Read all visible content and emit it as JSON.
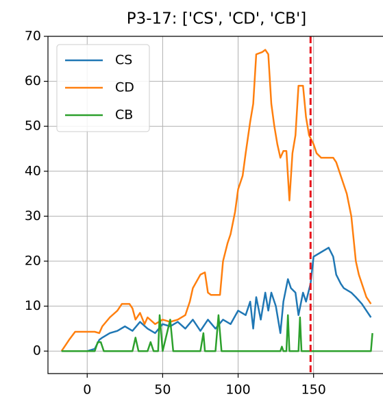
{
  "chart_data": {
    "type": "line",
    "title": "P3-17: ['CS', 'CD', 'CB']",
    "xlim": [
      -26,
      196
    ],
    "ylim": [
      -5,
      70
    ],
    "xticks": [
      0,
      50,
      100,
      150
    ],
    "yticks": [
      0,
      10,
      20,
      30,
      40,
      50,
      60,
      70
    ],
    "grid": true,
    "legend": "upper left",
    "vline": {
      "x": 148,
      "color": "#e8141c"
    },
    "series": [
      {
        "name": "CS",
        "color": "#1f77b4",
        "x": [
          -17,
          0,
          5,
          8,
          10,
          15,
          20,
          25,
          30,
          35,
          40,
          45,
          50,
          55,
          60,
          65,
          70,
          75,
          80,
          85,
          90,
          95,
          100,
          105,
          108,
          110,
          112,
          115,
          118,
          120,
          122,
          125,
          128,
          130,
          133,
          135,
          138,
          140,
          143,
          145,
          148,
          150,
          155,
          160,
          163,
          165,
          168,
          170,
          175,
          178,
          182,
          185,
          188
        ],
        "values": [
          0,
          0,
          0.5,
          2.5,
          3,
          4,
          4.5,
          5.5,
          4.5,
          6.5,
          5,
          4,
          6,
          5.5,
          6.5,
          5,
          7,
          4.5,
          7,
          5,
          7,
          6,
          9,
          8,
          11,
          5,
          12,
          7,
          13,
          9,
          13,
          10,
          4,
          11,
          16,
          14,
          13,
          8,
          13,
          11,
          15,
          21,
          22,
          23,
          21,
          17,
          15,
          14,
          13,
          12,
          10.5,
          9,
          7.5
        ]
      },
      {
        "name": "CD",
        "color": "#ff7f0e",
        "x": [
          -17,
          -15,
          -12,
          -8,
          0,
          5,
          8,
          10,
          15,
          20,
          23,
          28,
          30,
          32,
          35,
          38,
          40,
          45,
          50,
          55,
          60,
          65,
          68,
          70,
          75,
          78,
          80,
          82,
          88,
          90,
          93,
          95,
          98,
          100,
          103,
          105,
          108,
          110,
          112,
          116,
          118,
          120,
          122,
          124,
          126,
          128,
          130,
          132,
          134,
          136,
          138,
          140,
          143,
          145,
          147,
          150,
          152,
          155,
          160,
          163,
          165,
          167,
          170,
          172,
          175,
          178,
          180,
          183,
          185,
          188
        ],
        "values": [
          0,
          1,
          2.5,
          4.3,
          4.3,
          4.3,
          4,
          5.5,
          7.5,
          9,
          10.5,
          10.5,
          9.5,
          7,
          8.5,
          6,
          7.5,
          6,
          7,
          6.5,
          7,
          8,
          11,
          14,
          17,
          17.5,
          13,
          12.5,
          12.5,
          20,
          24,
          26,
          31,
          36,
          39,
          44,
          51,
          55,
          66,
          66.5,
          67,
          66,
          55,
          50,
          46,
          43,
          44.5,
          44.5,
          33.5,
          44,
          48,
          59,
          59,
          52,
          48,
          46,
          44,
          43,
          43,
          43,
          42,
          40,
          37,
          35,
          30,
          20,
          17,
          14,
          12,
          10.5
        ]
      },
      {
        "name": "CB",
        "color": "#2ca02c",
        "x": [
          -17,
          5,
          7,
          9,
          11,
          30,
          32,
          34,
          40,
          42,
          44,
          47,
          48,
          50,
          55,
          57,
          75,
          77,
          78,
          85,
          87,
          89,
          128,
          129,
          130,
          132,
          133,
          134,
          140,
          141,
          142,
          188,
          189
        ],
        "values": [
          0,
          0,
          2,
          2,
          0,
          0,
          3,
          0,
          0,
          2,
          0,
          0,
          8,
          0,
          7,
          0,
          0,
          4,
          0,
          0,
          8,
          0,
          0,
          1,
          0,
          0,
          8,
          0,
          0,
          7.5,
          0,
          0,
          4
        ]
      }
    ]
  }
}
